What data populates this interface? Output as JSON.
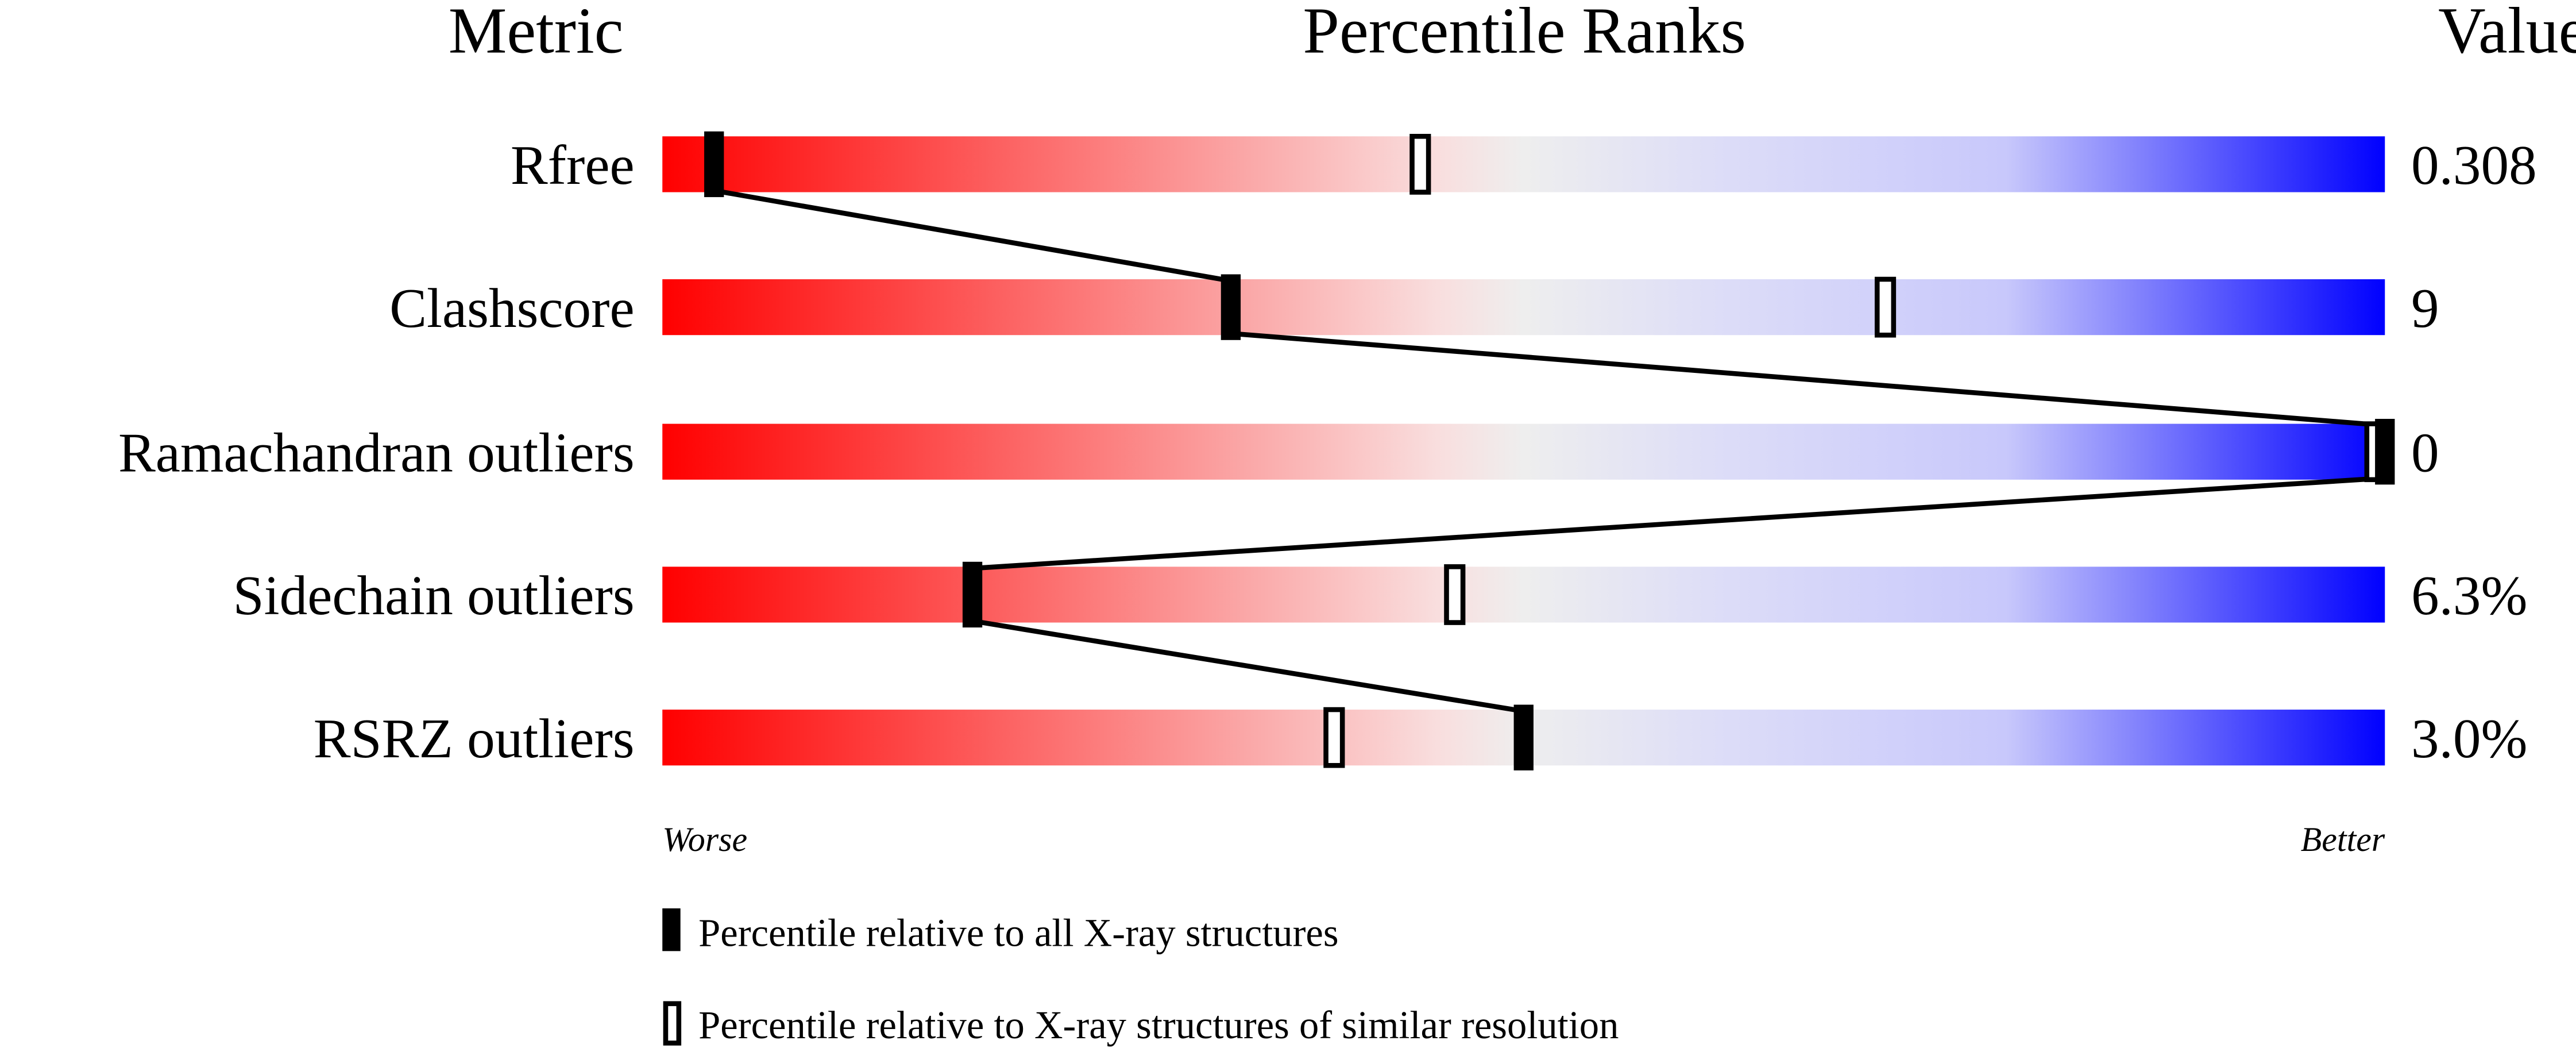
{
  "chart_data": {
    "type": "bar",
    "headers": {
      "metric": "Metric",
      "percentile": "Percentile Ranks",
      "value": "Value"
    },
    "axis_labels": {
      "worse": "Worse",
      "better": "Better"
    },
    "xlim": [
      0,
      100
    ],
    "gradient_colors": {
      "worse": "#ff0000",
      "middle": "#eeeeee",
      "better": "#0000ff"
    },
    "rows": [
      {
        "metric": "Rfree",
        "value": "0.308",
        "percentile_all": 3,
        "percentile_similar": 44
      },
      {
        "metric": "Clashscore",
        "value": "9",
        "percentile_all": 33,
        "percentile_similar": 71
      },
      {
        "metric": "Ramachandran outliers",
        "value": "0",
        "percentile_all": 100,
        "percentile_similar": 100
      },
      {
        "metric": "Sidechain outliers",
        "value": "6.3%",
        "percentile_all": 18,
        "percentile_similar": 46
      },
      {
        "metric": "RSRZ outliers",
        "value": "3.0%",
        "percentile_all": 50,
        "percentile_similar": 39
      }
    ],
    "legend": [
      {
        "marker": "filled",
        "label": "Percentile relative to all X-ray structures"
      },
      {
        "marker": "open",
        "label": "Percentile relative to X-ray structures of similar resolution"
      }
    ]
  }
}
